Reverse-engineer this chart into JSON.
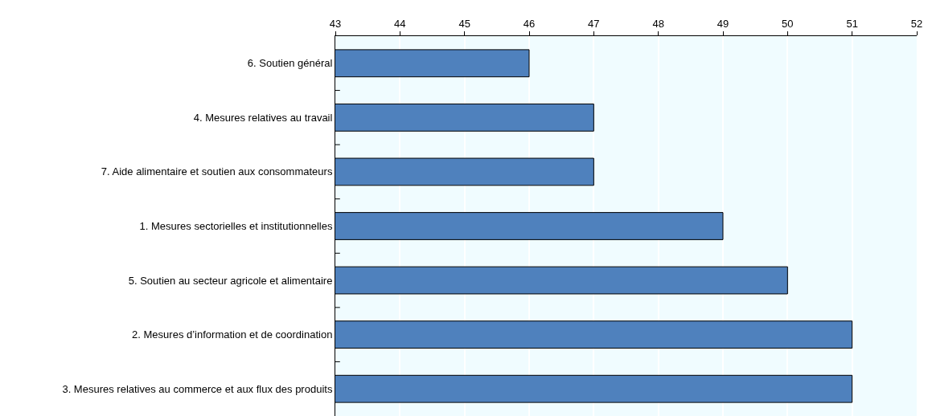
{
  "chart_data": {
    "type": "bar",
    "orientation": "horizontal",
    "categories": [
      "6. Soutien général",
      "4. Mesures relatives au travail",
      "7. Aide alimentaire et soutien aux consommateurs",
      "1. Mesures sectorielles et institutionnelles",
      "5. Soutien au secteur agricole et alimentaire",
      "2. Mesures d’information et de coordination",
      "3. Mesures relatives au commerce et aux flux des produits"
    ],
    "values": [
      46,
      47,
      47,
      49,
      50,
      51,
      51
    ],
    "color": "#4f81bd",
    "xlim": [
      43,
      52
    ],
    "xticks": [
      43,
      44,
      45,
      46,
      47,
      48,
      49,
      50,
      51,
      52
    ],
    "grid": "x",
    "legend": false
  }
}
